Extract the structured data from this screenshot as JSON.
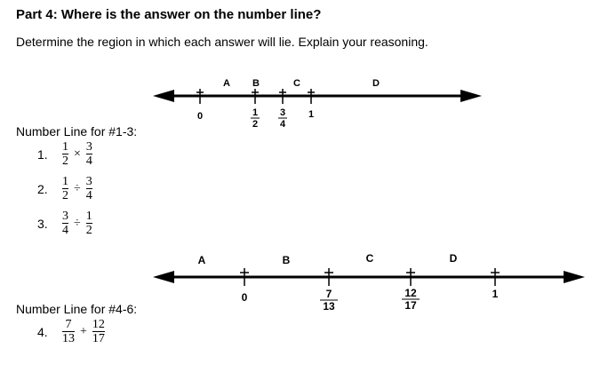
{
  "header": {
    "title": "Part 4:  Where is the answer on the number line?",
    "instructions": "Determine the region in which each answer will lie.  Explain your reasoning."
  },
  "number_line_1": {
    "heading": "Number Line for #1-3:",
    "region_labels": [
      "A",
      "B",
      "C",
      "D"
    ],
    "ticks": [
      {
        "label": "0",
        "value": 0
      },
      {
        "label_num": "1",
        "label_den": "2",
        "value": 0.5
      },
      {
        "label_num": "3",
        "label_den": "4",
        "value": 0.75
      },
      {
        "label": "1",
        "value": 1
      }
    ]
  },
  "problems_1": [
    {
      "number": "1.",
      "a_num": "1",
      "a_den": "2",
      "op": "×",
      "b_num": "3",
      "b_den": "4"
    },
    {
      "number": "2.",
      "a_num": "1",
      "a_den": "2",
      "op": "÷",
      "b_num": "3",
      "b_den": "4"
    },
    {
      "number": "3.",
      "a_num": "3",
      "a_den": "4",
      "op": "÷",
      "b_num": "1",
      "b_den": "2"
    }
  ],
  "number_line_2": {
    "heading": "Number Line for #4-6:",
    "region_labels": [
      "A",
      "B",
      "C",
      "D"
    ],
    "ticks": [
      {
        "label": "0",
        "value": 0
      },
      {
        "label_num": "7",
        "label_den": "13",
        "value": 0.538
      },
      {
        "label_num": "12",
        "label_den": "17",
        "value": 0.706
      },
      {
        "label": "1",
        "value": 1
      }
    ]
  },
  "problems_2": [
    {
      "number": "4.",
      "a_num": "7",
      "a_den": "13",
      "op": "+",
      "b_num": "12",
      "b_den": "17"
    }
  ]
}
